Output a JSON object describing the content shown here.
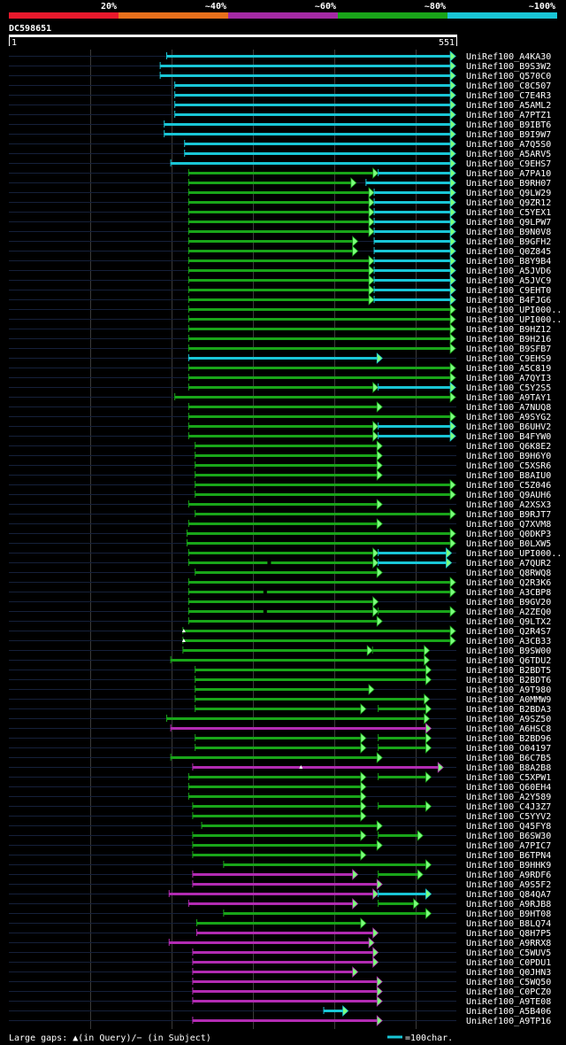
{
  "chart_data": {
    "type": "alignment-overview",
    "query_name": "DC598651",
    "query_start": "1",
    "query_end": "551",
    "query_length": 551,
    "color_scale": [
      {
        "label": "20%",
        "color": "#e8192c"
      },
      {
        "label": "~40%",
        "color": "#e8701c"
      },
      {
        "label": "~60%",
        "color": "#a52aa5"
      },
      {
        "label": "~80%",
        "color": "#19a519"
      },
      {
        "label": "~100%",
        "color": "#19c6d6"
      }
    ],
    "colors": {
      "cyan": "#19c6d6",
      "green": "#19a519",
      "purple": "#b22bb2",
      "lightgreen": "#7cff7c",
      "grid": "#3a3a3a",
      "track": "#15203a"
    },
    "rows": [
      {
        "name": "UniRef100_A4KA30",
        "segs": [
          [
            195,
            550,
            "c"
          ]
        ]
      },
      {
        "name": "UniRef100_B9S3W2",
        "segs": [
          [
            187,
            550,
            "c"
          ]
        ]
      },
      {
        "name": "UniRef100_Q570C0",
        "segs": [
          [
            187,
            550,
            "c"
          ]
        ]
      },
      {
        "name": "UniRef100_C8C507",
        "segs": [
          [
            205,
            550,
            "c"
          ]
        ]
      },
      {
        "name": "UniRef100_C7E4R3",
        "segs": [
          [
            205,
            550,
            "c"
          ]
        ]
      },
      {
        "name": "UniRef100_A5AML2",
        "segs": [
          [
            205,
            550,
            "c"
          ]
        ]
      },
      {
        "name": "UniRef100_A7PTZ1",
        "segs": [
          [
            205,
            550,
            "c"
          ]
        ]
      },
      {
        "name": "UniRef100_B9IBT6",
        "segs": [
          [
            192,
            550,
            "c"
          ]
        ]
      },
      {
        "name": "UniRef100_B9I9W7",
        "segs": [
          [
            192,
            550,
            "c"
          ]
        ]
      },
      {
        "name": "UniRef100_A7Q5S0",
        "segs": [
          [
            217,
            550,
            "c"
          ]
        ]
      },
      {
        "name": "UniRef100_A5ARV5",
        "segs": [
          [
            217,
            550,
            "c"
          ]
        ]
      },
      {
        "name": "UniRef100_C9EHS7",
        "segs": [
          [
            200,
            550,
            "c"
          ]
        ]
      },
      {
        "name": "UniRef100_A7PA10",
        "segs": [
          [
            222,
            455,
            "g"
          ],
          [
            455,
            550,
            "c"
          ]
        ]
      },
      {
        "name": "UniRef100_B9RH07",
        "segs": [
          [
            222,
            428,
            "g"
          ],
          [
            440,
            550,
            "c"
          ]
        ]
      },
      {
        "name": "UniRef100_Q9LW29",
        "segs": [
          [
            222,
            450,
            "g"
          ],
          [
            450,
            550,
            "c"
          ]
        ]
      },
      {
        "name": "UniRef100_Q9ZR12",
        "segs": [
          [
            222,
            450,
            "g"
          ],
          [
            450,
            550,
            "c"
          ]
        ]
      },
      {
        "name": "UniRef100_C5YEX1",
        "segs": [
          [
            222,
            450,
            "g"
          ],
          [
            450,
            550,
            "c"
          ]
        ]
      },
      {
        "name": "UniRef100_Q9LPW7",
        "segs": [
          [
            222,
            450,
            "g"
          ],
          [
            450,
            550,
            "c"
          ]
        ]
      },
      {
        "name": "UniRef100_B9N0V8",
        "segs": [
          [
            222,
            450,
            "g"
          ],
          [
            450,
            550,
            "c"
          ]
        ]
      },
      {
        "name": "UniRef100_B9GFH2",
        "segs": [
          [
            222,
            430,
            "g"
          ],
          [
            450,
            550,
            "c"
          ]
        ]
      },
      {
        "name": "UniRef100_Q0Z845",
        "segs": [
          [
            222,
            430,
            "g"
          ],
          [
            450,
            550,
            "c"
          ]
        ]
      },
      {
        "name": "UniRef100_B8Y9B4",
        "segs": [
          [
            222,
            450,
            "g"
          ],
          [
            450,
            550,
            "c"
          ]
        ]
      },
      {
        "name": "UniRef100_A5JVD6",
        "segs": [
          [
            222,
            450,
            "g"
          ],
          [
            450,
            550,
            "c"
          ]
        ]
      },
      {
        "name": "UniRef100_A5JVC9",
        "segs": [
          [
            222,
            450,
            "g"
          ],
          [
            450,
            550,
            "c"
          ]
        ]
      },
      {
        "name": "UniRef100_C9EHT0",
        "segs": [
          [
            222,
            450,
            "g"
          ],
          [
            450,
            550,
            "c"
          ]
        ]
      },
      {
        "name": "UniRef100_B4FJG6",
        "segs": [
          [
            222,
            450,
            "g"
          ],
          [
            450,
            550,
            "c"
          ]
        ]
      },
      {
        "name": "UniRef100_UPI000..",
        "segs": [
          [
            222,
            550,
            "g"
          ]
        ]
      },
      {
        "name": "UniRef100_UPI000..",
        "segs": [
          [
            222,
            550,
            "g"
          ]
        ]
      },
      {
        "name": "UniRef100_B9HZ12",
        "segs": [
          [
            222,
            550,
            "g"
          ]
        ]
      },
      {
        "name": "UniRef100_B9H216",
        "segs": [
          [
            222,
            550,
            "g"
          ]
        ]
      },
      {
        "name": "UniRef100_B9SFB7",
        "segs": [
          [
            222,
            550,
            "g"
          ]
        ]
      },
      {
        "name": "UniRef100_C9EHS9",
        "segs": [
          [
            222,
            460,
            "c"
          ]
        ]
      },
      {
        "name": "UniRef100_A5C819",
        "segs": [
          [
            222,
            550,
            "g"
          ]
        ]
      },
      {
        "name": "UniRef100_A7QYI3",
        "segs": [
          [
            222,
            550,
            "g"
          ]
        ]
      },
      {
        "name": "UniRef100_C5Y2S5",
        "segs": [
          [
            222,
            455,
            "g"
          ],
          [
            455,
            550,
            "c"
          ]
        ]
      },
      {
        "name": "UniRef100_A9TAY1",
        "segs": [
          [
            205,
            550,
            "g"
          ]
        ]
      },
      {
        "name": "UniRef100_A7NUQ8",
        "segs": [
          [
            222,
            460,
            "g"
          ]
        ]
      },
      {
        "name": "UniRef100_A9SYG2",
        "segs": [
          [
            222,
            550,
            "g"
          ]
        ]
      },
      {
        "name": "UniRef100_B6UHV2",
        "segs": [
          [
            222,
            455,
            "g"
          ],
          [
            455,
            550,
            "c"
          ]
        ]
      },
      {
        "name": "UniRef100_B4FYW0",
        "segs": [
          [
            222,
            455,
            "g"
          ],
          [
            455,
            550,
            "c"
          ]
        ]
      },
      {
        "name": "UniRef100_Q6K8E2",
        "segs": [
          [
            230,
            460,
            "g"
          ]
        ]
      },
      {
        "name": "UniRef100_B9H6Y0",
        "segs": [
          [
            230,
            460,
            "g"
          ]
        ]
      },
      {
        "name": "UniRef100_C5XSR6",
        "segs": [
          [
            230,
            460,
            "g"
          ]
        ]
      },
      {
        "name": "UniRef100_B8AIU0",
        "segs": [
          [
            230,
            460,
            "g"
          ]
        ]
      },
      {
        "name": "UniRef100_C5Z046",
        "segs": [
          [
            230,
            550,
            "g"
          ]
        ]
      },
      {
        "name": "UniRef100_Q9AUH6",
        "segs": [
          [
            230,
            550,
            "g"
          ]
        ]
      },
      {
        "name": "UniRef100_A2XSX3",
        "segs": [
          [
            222,
            460,
            "g"
          ]
        ]
      },
      {
        "name": "UniRef100_B9RJT7",
        "segs": [
          [
            230,
            550,
            "g"
          ]
        ]
      },
      {
        "name": "UniRef100_Q7XVM8",
        "segs": [
          [
            222,
            460,
            "g"
          ]
        ]
      },
      {
        "name": "UniRef100_Q0DKP3",
        "segs": [
          [
            220,
            550,
            "g"
          ]
        ]
      },
      {
        "name": "UniRef100_B0LXW5",
        "segs": [
          [
            220,
            550,
            "g"
          ]
        ]
      },
      {
        "name": "UniRef100_UPI000..",
        "segs": [
          [
            222,
            455,
            "g"
          ],
          [
            455,
            545,
            "c"
          ]
        ]
      },
      {
        "name": "UniRef100_A7QUR2",
        "segs": [
          [
            222,
            455,
            "g"
          ],
          [
            455,
            545,
            "c"
          ]
        ]
      },
      {
        "name": "UniRef100_Q8RWQ8",
        "segs": [
          [
            230,
            460,
            "g"
          ]
        ]
      },
      {
        "name": "UniRef100_Q2R3K6",
        "segs": [
          [
            222,
            550,
            "g"
          ]
        ]
      },
      {
        "name": "UniRef100_A3CBP8",
        "segs": [
          [
            222,
            550,
            "g"
          ]
        ]
      },
      {
        "name": "UniRef100_B9GV20",
        "segs": [
          [
            222,
            455,
            "g"
          ]
        ]
      },
      {
        "name": "UniRef100_A2ZEQ0",
        "segs": [
          [
            222,
            455,
            "g"
          ],
          [
            455,
            550,
            "g"
          ]
        ]
      },
      {
        "name": "UniRef100_Q9LTX2",
        "segs": [
          [
            222,
            460,
            "g"
          ]
        ]
      },
      {
        "name": "UniRef100_Q2R4S7",
        "segs": [
          [
            215,
            550,
            "g"
          ]
        ]
      },
      {
        "name": "UniRef100_A3CB33",
        "segs": [
          [
            215,
            550,
            "g"
          ]
        ]
      },
      {
        "name": "UniRef100_B9SW00",
        "segs": [
          [
            215,
            448,
            "g"
          ],
          [
            448,
            518,
            "g"
          ]
        ]
      },
      {
        "name": "UniRef100_Q6TDU2",
        "segs": [
          [
            200,
            518,
            "g"
          ]
        ]
      },
      {
        "name": "UniRef100_B2BDT5",
        "segs": [
          [
            230,
            520,
            "g"
          ]
        ]
      },
      {
        "name": "UniRef100_B2BDT6",
        "segs": [
          [
            230,
            520,
            "g"
          ]
        ]
      },
      {
        "name": "UniRef100_A9T980",
        "segs": [
          [
            230,
            450,
            "g"
          ]
        ]
      },
      {
        "name": "UniRef100_A0MMW9",
        "segs": [
          [
            230,
            518,
            "g"
          ]
        ]
      },
      {
        "name": "UniRef100_B2BDA3",
        "segs": [
          [
            230,
            440,
            "g"
          ],
          [
            455,
            520,
            "g"
          ]
        ]
      },
      {
        "name": "UniRef100_A9SZ50",
        "segs": [
          [
            195,
            518,
            "g"
          ]
        ]
      },
      {
        "name": "UniRef100_A6HSC8",
        "segs": [
          [
            200,
            520,
            "p"
          ]
        ]
      },
      {
        "name": "UniRef100_B2BD96",
        "segs": [
          [
            230,
            440,
            "g"
          ],
          [
            455,
            520,
            "g"
          ]
        ]
      },
      {
        "name": "UniRef100_O04197",
        "segs": [
          [
            230,
            440,
            "g"
          ],
          [
            455,
            520,
            "g"
          ]
        ]
      },
      {
        "name": "UniRef100_B6C7B5",
        "segs": [
          [
            200,
            460,
            "g"
          ]
        ]
      },
      {
        "name": "UniRef100_B8A2B8",
        "segs": [
          [
            227,
            535,
            "p"
          ]
        ]
      },
      {
        "name": "UniRef100_C5XPW1",
        "segs": [
          [
            222,
            440,
            "g"
          ],
          [
            455,
            520,
            "g"
          ]
        ]
      },
      {
        "name": "UniRef100_Q60EH4",
        "segs": [
          [
            222,
            440,
            "g"
          ]
        ]
      },
      {
        "name": "UniRef100_A2Y589",
        "segs": [
          [
            222,
            440,
            "g"
          ]
        ]
      },
      {
        "name": "UniRef100_C4J3Z7",
        "segs": [
          [
            227,
            440,
            "g"
          ],
          [
            455,
            520,
            "g"
          ]
        ]
      },
      {
        "name": "UniRef100_C5YYV2",
        "segs": [
          [
            227,
            440,
            "g"
          ]
        ]
      },
      {
        "name": "UniRef100_Q45FY8",
        "segs": [
          [
            238,
            460,
            "g"
          ]
        ]
      },
      {
        "name": "UniRef100_B6SW30",
        "segs": [
          [
            227,
            440,
            "g"
          ],
          [
            455,
            510,
            "g"
          ]
        ]
      },
      {
        "name": "UniRef100_A7PIC7",
        "segs": [
          [
            227,
            460,
            "g"
          ]
        ]
      },
      {
        "name": "UniRef100_B6TPN4",
        "segs": [
          [
            227,
            440,
            "g"
          ]
        ]
      },
      {
        "name": "UniRef100_B9HHK9",
        "segs": [
          [
            265,
            520,
            "g"
          ]
        ]
      },
      {
        "name": "UniRef100_A9RDF6",
        "segs": [
          [
            227,
            430,
            "p"
          ],
          [
            455,
            510,
            "g"
          ]
        ]
      },
      {
        "name": "UniRef100_A9S5F2",
        "segs": [
          [
            227,
            460,
            "p"
          ]
        ]
      },
      {
        "name": "UniRef100_Q84QA7",
        "segs": [
          [
            198,
            455,
            "p"
          ],
          [
            455,
            520,
            "c"
          ]
        ]
      },
      {
        "name": "UniRef100_A9RJB8",
        "segs": [
          [
            222,
            430,
            "p"
          ],
          [
            455,
            505,
            "g"
          ]
        ]
      },
      {
        "name": "UniRef100_B9HT08",
        "segs": [
          [
            265,
            520,
            "g"
          ]
        ]
      },
      {
        "name": "UniRef100_B8LQ74",
        "segs": [
          [
            232,
            440,
            "g"
          ]
        ]
      },
      {
        "name": "UniRef100_Q8H7P5",
        "segs": [
          [
            232,
            455,
            "p"
          ]
        ]
      },
      {
        "name": "UniRef100_A9RRX8",
        "segs": [
          [
            198,
            450,
            "p"
          ]
        ]
      },
      {
        "name": "UniRef100_C5WUV5",
        "segs": [
          [
            227,
            455,
            "p"
          ]
        ]
      },
      {
        "name": "UniRef100_C0PDU1",
        "segs": [
          [
            227,
            455,
            "p"
          ]
        ]
      },
      {
        "name": "UniRef100_Q0JHN3",
        "segs": [
          [
            227,
            430,
            "p"
          ]
        ]
      },
      {
        "name": "UniRef100_C5WQ50",
        "segs": [
          [
            227,
            460,
            "p"
          ]
        ]
      },
      {
        "name": "UniRef100_C0PCZ0",
        "segs": [
          [
            227,
            460,
            "p"
          ]
        ]
      },
      {
        "name": "UniRef100_A9TE08",
        "segs": [
          [
            227,
            460,
            "p"
          ]
        ]
      },
      {
        "name": "UniRef100_A5B406",
        "segs": [
          [
            388,
            418,
            "c"
          ]
        ]
      },
      {
        "name": "UniRef100_A9TP16",
        "segs": [
          [
            227,
            460,
            "p"
          ]
        ]
      }
    ],
    "gap_markers": [
      {
        "row": 52,
        "pos": 321,
        "type": "subject"
      },
      {
        "row": 55,
        "pos": 316,
        "type": "subject"
      },
      {
        "row": 57,
        "pos": 316,
        "type": "subject"
      },
      {
        "row": 59,
        "pos": 216,
        "type": "query"
      },
      {
        "row": 60,
        "pos": 216,
        "type": "query"
      },
      {
        "row": 73,
        "pos": 360,
        "type": "query"
      }
    ],
    "legend_text": "Large gaps: ▲(in Query)/− (in Subject)",
    "scale_text": "=100char."
  }
}
